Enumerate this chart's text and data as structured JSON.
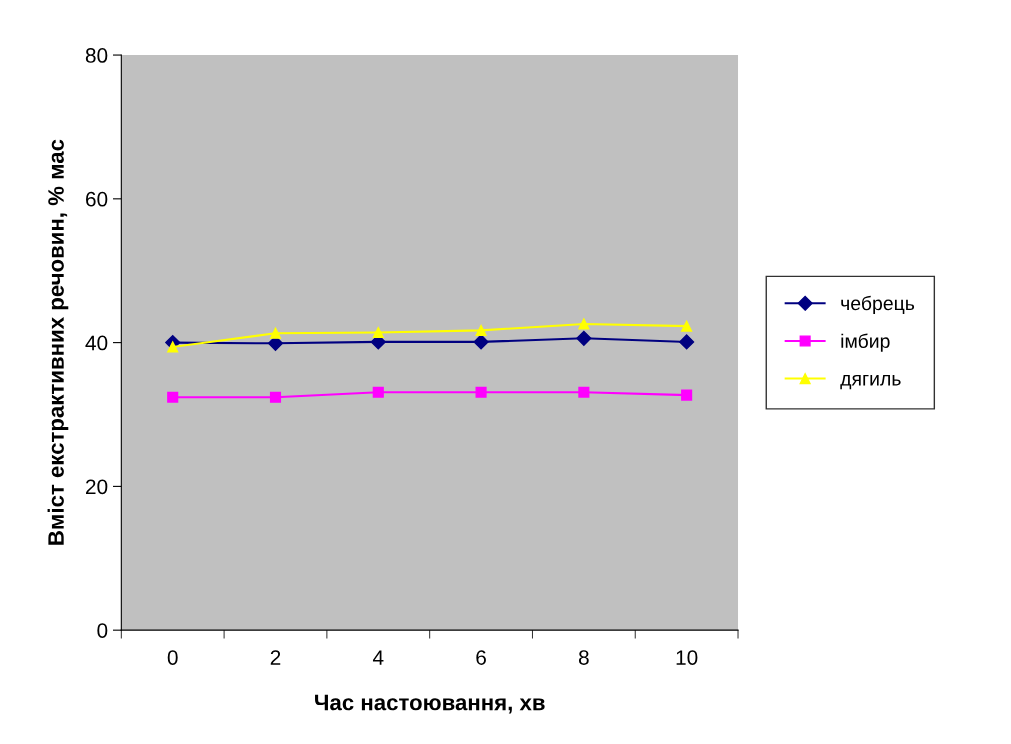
{
  "chart_data": {
    "type": "line",
    "xlabel": "Час настоювання, хв",
    "ylabel": "Вміст екстрактивних речовин, % мас",
    "categories": [
      "0",
      "2",
      "4",
      "6",
      "8",
      "10"
    ],
    "series": [
      {
        "name": "чебрець",
        "color": "#000080",
        "marker": "diamond",
        "values": [
          40.0,
          39.9,
          40.1,
          40.1,
          40.6,
          40.1
        ]
      },
      {
        "name": "імбир",
        "color": "#ff00ff",
        "marker": "square",
        "values": [
          32.4,
          32.4,
          33.1,
          33.1,
          33.1,
          32.7
        ]
      },
      {
        "name": "дягиль",
        "color": "#ffff00",
        "marker": "triangle",
        "values": [
          39.4,
          41.3,
          41.4,
          41.7,
          42.6,
          42.3
        ]
      }
    ],
    "ylim": [
      0,
      80
    ],
    "yticks": [
      0,
      20,
      40,
      60,
      80
    ],
    "grid": false,
    "legend": "right"
  }
}
